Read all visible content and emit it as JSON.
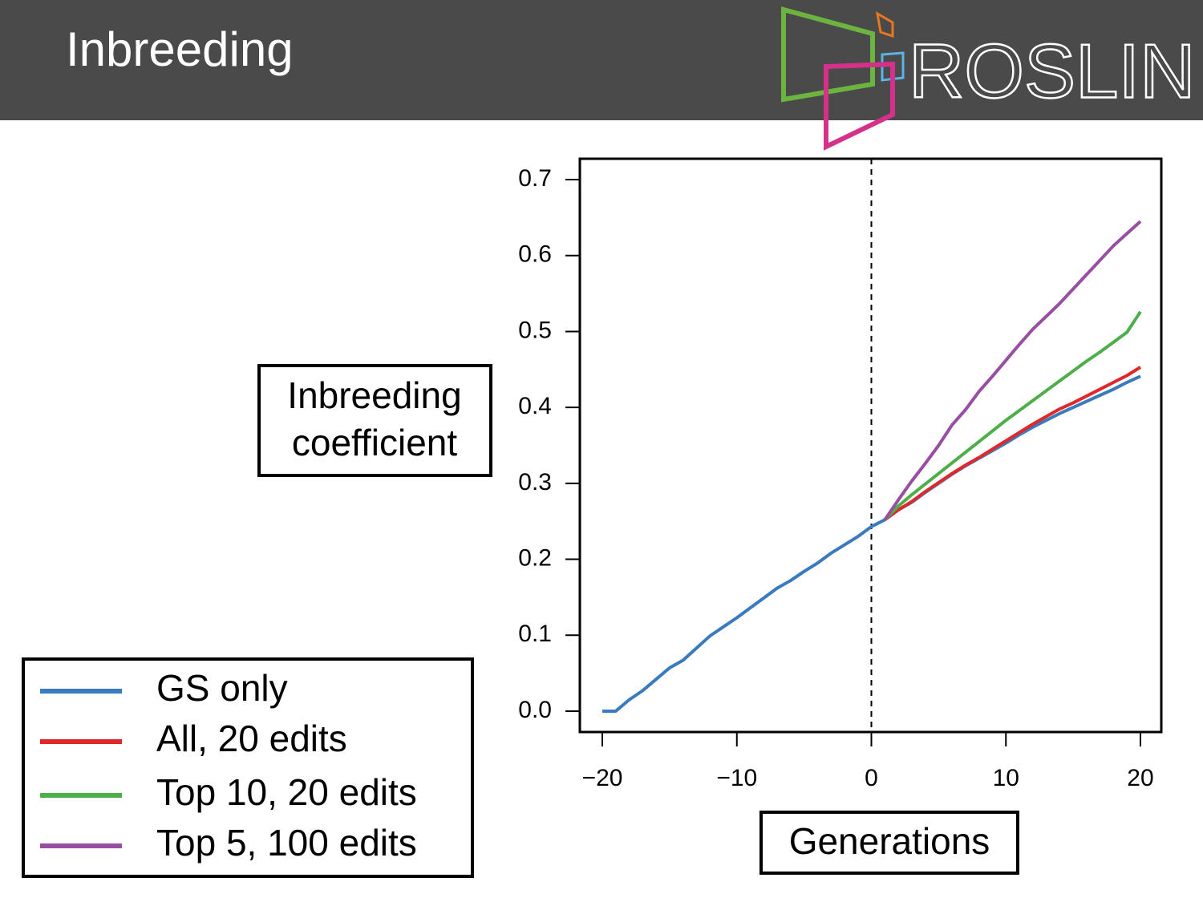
{
  "header": {
    "title": "Inbreeding",
    "logo": "ROSLIN"
  },
  "chart_data": {
    "type": "line",
    "ylabel": [
      "Inbreeding",
      "coefficient"
    ],
    "xlabel": "Generations",
    "x": [
      -20,
      -19,
      -18,
      -17,
      -16,
      -15,
      -14,
      -13,
      -12,
      -11,
      -10,
      -9,
      -8,
      -7,
      -6,
      -5,
      -4,
      -3,
      -2,
      -1,
      0,
      1,
      2,
      3,
      4,
      5,
      6,
      7,
      8,
      9,
      10,
      11,
      12,
      13,
      14,
      15,
      16,
      17,
      18,
      19,
      20
    ],
    "series": [
      {
        "name": "GS only",
        "color": "#3a7bbf",
        "values": [
          0,
          0,
          0.015,
          0.027,
          0.042,
          0.057,
          0.067,
          0.083,
          0.099,
          0.111,
          0.123,
          0.136,
          0.149,
          0.162,
          0.172,
          0.184,
          0.195,
          0.208,
          0.219,
          0.23,
          0.243,
          0.252,
          0.265,
          0.275,
          0.288,
          0.3,
          0.312,
          0.323,
          0.333,
          0.343,
          0.353,
          0.364,
          0.374,
          0.383,
          0.392,
          0.4,
          0.408,
          0.416,
          0.424,
          0.433,
          0.441
        ]
      },
      {
        "name": "All, 20 edits",
        "color": "#e0282a",
        "values": [
          null,
          null,
          null,
          null,
          null,
          null,
          null,
          null,
          null,
          null,
          null,
          null,
          null,
          null,
          null,
          null,
          null,
          null,
          null,
          null,
          null,
          0.252,
          0.265,
          0.276,
          0.289,
          0.301,
          0.313,
          0.324,
          0.334,
          0.345,
          0.356,
          0.367,
          0.378,
          0.388,
          0.398,
          0.406,
          0.415,
          0.424,
          0.433,
          0.442,
          0.453
        ]
      },
      {
        "name": "Top 10, 20 edits",
        "color": "#4daf4a",
        "values": [
          null,
          null,
          null,
          null,
          null,
          null,
          null,
          null,
          null,
          null,
          null,
          null,
          null,
          null,
          null,
          null,
          null,
          null,
          null,
          null,
          null,
          0.252,
          0.27,
          0.285,
          0.299,
          0.313,
          0.327,
          0.341,
          0.355,
          0.369,
          0.383,
          0.396,
          0.409,
          0.422,
          0.435,
          0.448,
          0.461,
          0.473,
          0.486,
          0.499,
          0.526
        ]
      },
      {
        "name": "Top 5, 100 edits",
        "color": "#984ea3",
        "values": [
          null,
          null,
          null,
          null,
          null,
          null,
          null,
          null,
          null,
          null,
          null,
          null,
          null,
          null,
          null,
          null,
          null,
          null,
          null,
          null,
          null,
          0.252,
          0.278,
          0.303,
          0.326,
          0.35,
          0.377,
          0.397,
          0.421,
          0.441,
          0.462,
          0.483,
          0.503,
          0.52,
          0.537,
          0.556,
          0.575,
          0.594,
          0.613,
          0.629,
          0.645
        ]
      }
    ],
    "vline": 0,
    "xlim": [
      -21.67,
      21.55
    ],
    "ylim": [
      -0.0275,
      0.7275
    ],
    "xticks": [
      {
        "value": -20,
        "label": "−20"
      },
      {
        "value": -10,
        "label": "−10"
      },
      0,
      10,
      20
    ],
    "yticks": [
      {
        "value": 0,
        "label": "0.0"
      },
      0.1,
      0.2,
      0.3,
      0.4,
      0.5,
      0.6,
      0.7
    ],
    "legend": "bottom-left"
  }
}
